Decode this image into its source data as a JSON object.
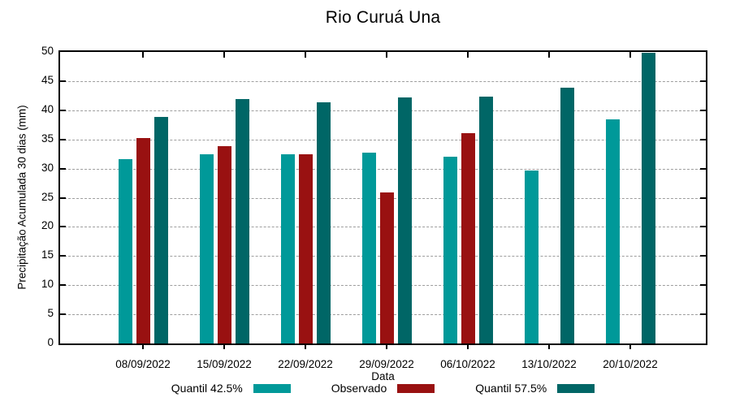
{
  "title": "Rio Curuá Una",
  "colors": {
    "quantil_low": "#009999",
    "observado": "#991111",
    "quantil_high": "#006666",
    "grid": "#9e9e9e",
    "axis": "#000000",
    "background": "#ffffff"
  },
  "chart_data": {
    "type": "bar",
    "title": "Rio Curuá Una",
    "xlabel": "Data",
    "ylabel": "Precipitação Acumulada 30 dias (mm)",
    "ylim": [
      0,
      50
    ],
    "yticks": [
      0,
      5,
      10,
      15,
      20,
      25,
      30,
      35,
      40,
      45,
      50
    ],
    "grid": true,
    "grid_style": "dashed",
    "legend_position": "bottom",
    "categories": [
      "08/09/2022",
      "15/09/2022",
      "22/09/2022",
      "29/09/2022",
      "06/10/2022",
      "13/10/2022",
      "20/10/2022"
    ],
    "series": [
      {
        "name": "Quantil 42.5%",
        "color": "#009999",
        "values": [
          31.6,
          32.4,
          32.4,
          32.8,
          32.1,
          29.7,
          38.5
        ]
      },
      {
        "name": "Observado",
        "color": "#991111",
        "values": [
          35.3,
          33.9,
          32.5,
          25.9,
          36.1,
          null,
          null
        ]
      },
      {
        "name": "Quantil 57.5%",
        "color": "#006666",
        "values": [
          38.8,
          41.9,
          41.4,
          42.2,
          42.4,
          43.9,
          49.9
        ]
      }
    ]
  }
}
